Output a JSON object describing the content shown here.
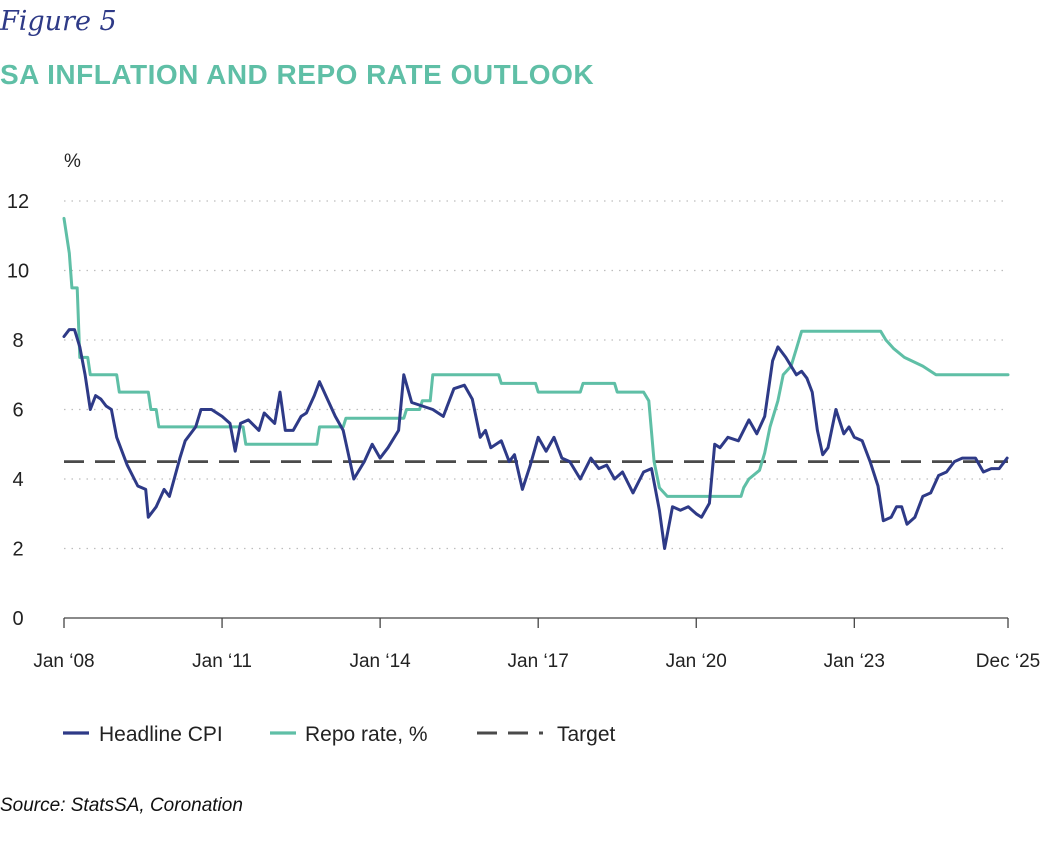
{
  "figure_label": "Figure 5",
  "source": "Source: StatsSA, Coronation",
  "colors": {
    "cpi": "#2e3a87",
    "repo": "#5fbfa6",
    "target": "#4a4a4a",
    "title": "#5fbfa6"
  },
  "chart_data": {
    "type": "line",
    "title": "SA INFLATION AND REPO RATE OUTLOOK",
    "ylabel": "%",
    "xlabel": "",
    "ylim": [
      0,
      12
    ],
    "yticks": [
      0,
      2,
      4,
      6,
      8,
      10,
      12
    ],
    "xlim": [
      "2008-01",
      "2025-12"
    ],
    "xticks": [
      {
        "x": 2008.0,
        "label": "Jan ‘08"
      },
      {
        "x": 2011.0,
        "label": "Jan ‘11"
      },
      {
        "x": 2014.0,
        "label": "Jan ‘14"
      },
      {
        "x": 2017.0,
        "label": "Jan ‘17"
      },
      {
        "x": 2020.0,
        "label": "Jan ‘20"
      },
      {
        "x": 2023.0,
        "label": "Jan ‘23"
      },
      {
        "x": 2025.917,
        "label": "Dec ‘25"
      }
    ],
    "grid": true,
    "legend_position": "bottom",
    "series": [
      {
        "name": "Headline CPI",
        "key": "cpi",
        "style": "solid",
        "points": [
          [
            2008.0,
            8.1
          ],
          [
            2008.1,
            8.3
          ],
          [
            2008.2,
            8.3
          ],
          [
            2008.3,
            7.8
          ],
          [
            2008.4,
            7.0
          ],
          [
            2008.5,
            6.0
          ],
          [
            2008.6,
            6.4
          ],
          [
            2008.7,
            6.3
          ],
          [
            2008.8,
            6.1
          ],
          [
            2008.9,
            6.0
          ],
          [
            2009.0,
            5.2
          ],
          [
            2009.2,
            4.4
          ],
          [
            2009.4,
            3.8
          ],
          [
            2009.55,
            3.7
          ],
          [
            2009.6,
            2.9
          ],
          [
            2009.75,
            3.2
          ],
          [
            2009.9,
            3.7
          ],
          [
            2010.0,
            3.5
          ],
          [
            2010.2,
            4.6
          ],
          [
            2010.3,
            5.1
          ],
          [
            2010.5,
            5.5
          ],
          [
            2010.6,
            6.0
          ],
          [
            2010.8,
            6.0
          ],
          [
            2011.0,
            5.8
          ],
          [
            2011.15,
            5.6
          ],
          [
            2011.25,
            4.8
          ],
          [
            2011.35,
            5.6
          ],
          [
            2011.5,
            5.7
          ],
          [
            2011.7,
            5.4
          ],
          [
            2011.8,
            5.9
          ],
          [
            2012.0,
            5.6
          ],
          [
            2012.1,
            6.5
          ],
          [
            2012.2,
            5.4
          ],
          [
            2012.35,
            5.4
          ],
          [
            2012.5,
            5.8
          ],
          [
            2012.6,
            5.9
          ],
          [
            2012.75,
            6.4
          ],
          [
            2012.85,
            6.8
          ],
          [
            2013.0,
            6.3
          ],
          [
            2013.15,
            5.8
          ],
          [
            2013.3,
            5.4
          ],
          [
            2013.4,
            4.7
          ],
          [
            2013.5,
            4.0
          ],
          [
            2013.7,
            4.5
          ],
          [
            2013.85,
            5.0
          ],
          [
            2014.0,
            4.6
          ],
          [
            2014.15,
            4.9
          ],
          [
            2014.35,
            5.4
          ],
          [
            2014.45,
            7.0
          ],
          [
            2014.6,
            6.2
          ],
          [
            2014.8,
            6.1
          ],
          [
            2015.0,
            6.0
          ],
          [
            2015.2,
            5.8
          ],
          [
            2015.4,
            6.6
          ],
          [
            2015.6,
            6.7
          ],
          [
            2015.75,
            6.3
          ],
          [
            2015.9,
            5.2
          ],
          [
            2016.0,
            5.4
          ],
          [
            2016.1,
            4.9
          ],
          [
            2016.3,
            5.1
          ],
          [
            2016.45,
            4.5
          ],
          [
            2016.55,
            4.7
          ],
          [
            2016.7,
            3.7
          ],
          [
            2016.85,
            4.4
          ],
          [
            2017.0,
            5.2
          ],
          [
            2017.15,
            4.8
          ],
          [
            2017.3,
            5.2
          ],
          [
            2017.45,
            4.6
          ],
          [
            2017.6,
            4.5
          ],
          [
            2017.8,
            4.0
          ],
          [
            2018.0,
            4.6
          ],
          [
            2018.15,
            4.3
          ],
          [
            2018.3,
            4.4
          ],
          [
            2018.45,
            4.0
          ],
          [
            2018.6,
            4.2
          ],
          [
            2018.8,
            3.6
          ],
          [
            2019.0,
            4.2
          ],
          [
            2019.15,
            4.3
          ],
          [
            2019.3,
            3.1
          ],
          [
            2019.4,
            2.0
          ],
          [
            2019.55,
            3.2
          ],
          [
            2019.7,
            3.1
          ],
          [
            2019.85,
            3.2
          ],
          [
            2020.0,
            3.0
          ],
          [
            2020.1,
            2.9
          ],
          [
            2020.25,
            3.3
          ],
          [
            2020.35,
            5.0
          ],
          [
            2020.45,
            4.9
          ],
          [
            2020.6,
            5.2
          ],
          [
            2020.8,
            5.1
          ],
          [
            2021.0,
            5.7
          ],
          [
            2021.15,
            5.3
          ],
          [
            2021.3,
            5.8
          ],
          [
            2021.45,
            7.4
          ],
          [
            2021.55,
            7.8
          ],
          [
            2021.7,
            7.5
          ],
          [
            2021.9,
            7.0
          ],
          [
            2022.0,
            7.1
          ],
          [
            2022.1,
            6.9
          ],
          [
            2022.2,
            6.5
          ],
          [
            2022.3,
            5.4
          ],
          [
            2022.4,
            4.7
          ],
          [
            2022.5,
            4.9
          ],
          [
            2022.65,
            6.0
          ],
          [
            2022.8,
            5.3
          ],
          [
            2022.9,
            5.5
          ],
          [
            2023.0,
            5.2
          ],
          [
            2023.15,
            5.1
          ],
          [
            2023.3,
            4.5
          ],
          [
            2023.45,
            3.8
          ],
          [
            2023.55,
            2.8
          ],
          [
            2023.7,
            2.9
          ],
          [
            2023.8,
            3.2
          ],
          [
            2023.9,
            3.2
          ],
          [
            2024.0,
            2.7
          ],
          [
            2024.15,
            2.9
          ],
          [
            2024.3,
            3.5
          ],
          [
            2024.45,
            3.6
          ],
          [
            2024.6,
            4.1
          ],
          [
            2024.75,
            4.2
          ],
          [
            2024.9,
            4.5
          ],
          [
            2025.05,
            4.6
          ],
          [
            2025.2,
            4.6
          ],
          [
            2025.3,
            4.6
          ],
          [
            2025.45,
            4.2
          ],
          [
            2025.6,
            4.3
          ],
          [
            2025.75,
            4.3
          ],
          [
            2025.9,
            4.6
          ]
        ]
      },
      {
        "name": "Repo rate, %",
        "key": "repo",
        "style": "solid",
        "points": [
          [
            2008.0,
            11.5
          ],
          [
            2008.1,
            10.5
          ],
          [
            2008.15,
            9.5
          ],
          [
            2008.25,
            9.5
          ],
          [
            2008.3,
            7.5
          ],
          [
            2008.45,
            7.5
          ],
          [
            2008.5,
            7.0
          ],
          [
            2009.0,
            7.0
          ],
          [
            2009.05,
            6.5
          ],
          [
            2009.6,
            6.5
          ],
          [
            2009.65,
            6.0
          ],
          [
            2009.75,
            6.0
          ],
          [
            2009.8,
            5.5
          ],
          [
            2011.4,
            5.5
          ],
          [
            2011.45,
            5.0
          ],
          [
            2012.8,
            5.0
          ],
          [
            2012.85,
            5.5
          ],
          [
            2013.3,
            5.5
          ],
          [
            2013.35,
            5.75
          ],
          [
            2014.45,
            5.75
          ],
          [
            2014.5,
            6.0
          ],
          [
            2014.75,
            6.0
          ],
          [
            2014.8,
            6.25
          ],
          [
            2014.95,
            6.25
          ],
          [
            2015.0,
            7.0
          ],
          [
            2016.25,
            7.0
          ],
          [
            2016.3,
            6.75
          ],
          [
            2016.95,
            6.75
          ],
          [
            2017.0,
            6.5
          ],
          [
            2017.8,
            6.5
          ],
          [
            2017.85,
            6.75
          ],
          [
            2018.45,
            6.75
          ],
          [
            2018.5,
            6.5
          ],
          [
            2019.0,
            6.5
          ],
          [
            2019.1,
            6.25
          ],
          [
            2019.2,
            4.5
          ],
          [
            2019.3,
            3.75
          ],
          [
            2019.45,
            3.5
          ],
          [
            2020.85,
            3.5
          ],
          [
            2020.9,
            3.75
          ],
          [
            2021.0,
            4.0
          ],
          [
            2021.2,
            4.25
          ],
          [
            2021.3,
            4.75
          ],
          [
            2021.4,
            5.5
          ],
          [
            2021.55,
            6.25
          ],
          [
            2021.65,
            7.0
          ],
          [
            2021.8,
            7.25
          ],
          [
            2021.9,
            7.75
          ],
          [
            2022.0,
            8.25
          ],
          [
            2022.65,
            8.25
          ],
          [
            2023.0,
            8.25
          ],
          [
            2023.5,
            8.25
          ],
          [
            2023.6,
            8.0
          ],
          [
            2023.75,
            7.75
          ],
          [
            2023.95,
            7.5
          ],
          [
            2024.3,
            7.25
          ],
          [
            2024.55,
            7.0
          ],
          [
            2025.917,
            7.0
          ]
        ]
      },
      {
        "name": "Target",
        "key": "target",
        "style": "dashed",
        "points": [
          [
            2008.0,
            4.5
          ],
          [
            2025.917,
            4.5
          ]
        ]
      }
    ]
  }
}
